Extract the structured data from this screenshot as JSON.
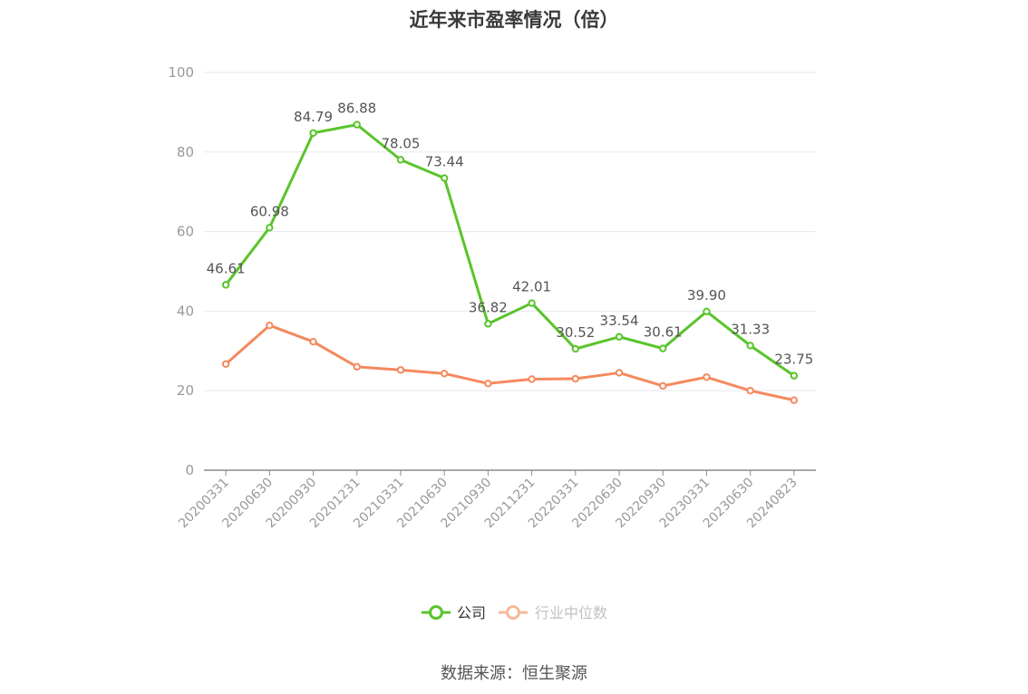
{
  "chart_data": {
    "type": "line",
    "title": "近年来市盈率情况（倍）",
    "categories": [
      "20200331",
      "20200630",
      "20200930",
      "20201231",
      "20210331",
      "20210630",
      "20210930",
      "20211231",
      "20220331",
      "20220630",
      "20220930",
      "20230331",
      "20230630",
      "20240823"
    ],
    "series": [
      {
        "name": "公司",
        "color": "#5ac42b",
        "values": [
          46.61,
          60.98,
          84.79,
          86.88,
          78.05,
          73.44,
          36.82,
          42.01,
          30.52,
          33.54,
          30.61,
          39.9,
          31.33,
          23.75
        ],
        "labels": [
          "46.61",
          "60.98",
          "84.79",
          "86.88",
          "78.05",
          "73.44",
          "36.82",
          "42.01",
          "30.52",
          "33.54",
          "30.61",
          "39.90",
          "31.33",
          "23.75"
        ]
      },
      {
        "name": "行业中位数",
        "color": "#f5895e",
        "values": [
          26.7,
          36.4,
          32.3,
          26.0,
          25.2,
          24.3,
          21.8,
          22.9,
          23.0,
          24.5,
          21.2,
          23.4,
          20.0,
          17.6
        ]
      }
    ],
    "ylim": [
      0,
      100
    ],
    "yticks": [
      0,
      20,
      40,
      60,
      80,
      100
    ],
    "grid": true,
    "legend_position": "bottom"
  },
  "source": "数据来源：恒生聚源"
}
